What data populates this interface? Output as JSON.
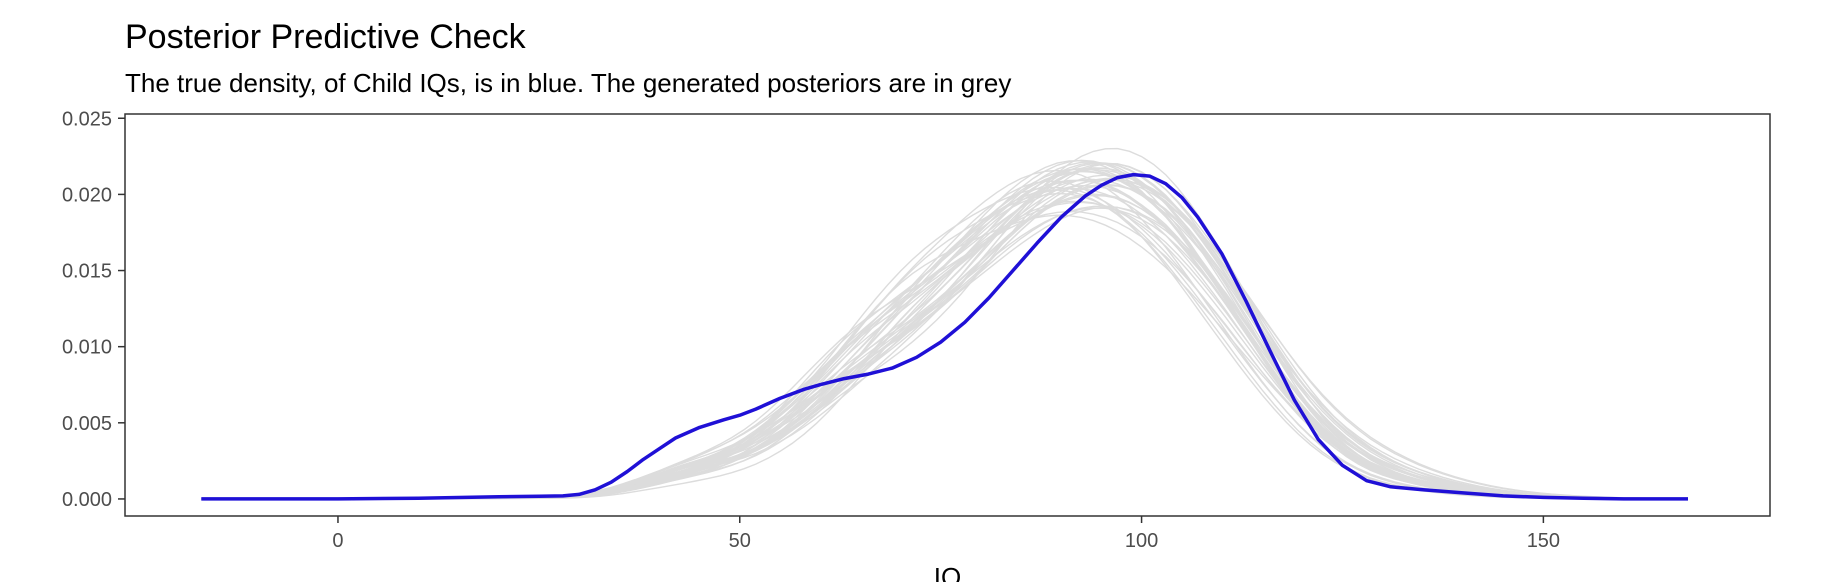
{
  "chart_data": {
    "type": "line",
    "title": "Posterior Predictive Check",
    "subtitle": "The true density, of Child IQs, is in blue. The generated posteriors are in grey",
    "xlabel": "IQ",
    "ylabel": "",
    "xlim": [
      -26.5,
      178.2
    ],
    "ylim": [
      -0.00112,
      0.02528
    ],
    "x_ticks": [
      0,
      50,
      100,
      150
    ],
    "x_tick_labels": [
      "0",
      "50",
      "100",
      "150"
    ],
    "y_ticks": [
      0.0,
      0.005,
      0.01,
      0.015,
      0.02,
      0.025
    ],
    "y_tick_labels": [
      "0.000",
      "0.005",
      "0.010",
      "0.015",
      "0.020",
      "0.025"
    ],
    "grid": false,
    "legend": "none",
    "colors": {
      "observed": "#1f10d6",
      "posterior": "#dcdcdc",
      "axis": "#333333"
    },
    "observed": {
      "x": [
        -17,
        -10,
        0,
        10,
        20,
        25,
        28,
        30,
        32,
        34,
        36,
        38,
        40,
        42,
        45,
        48,
        50,
        52,
        55,
        58,
        60,
        63,
        66,
        69,
        72,
        75,
        78,
        81,
        84,
        87,
        90,
        93,
        95,
        97,
        99,
        101,
        103,
        105,
        107,
        110,
        113,
        116,
        119,
        122,
        125,
        128,
        131,
        135,
        140,
        145,
        150,
        155,
        160,
        168
      ],
      "y": [
        0.0,
        0.0,
        0.0,
        5e-05,
        0.00015,
        0.00018,
        0.0002,
        0.0003,
        0.0006,
        0.0011,
        0.0018,
        0.0026,
        0.0033,
        0.004,
        0.0047,
        0.0052,
        0.0055,
        0.0059,
        0.0066,
        0.0072,
        0.0075,
        0.0079,
        0.0082,
        0.0086,
        0.0093,
        0.0103,
        0.0116,
        0.0132,
        0.015,
        0.0168,
        0.0185,
        0.0199,
        0.0206,
        0.0211,
        0.0213,
        0.0212,
        0.0207,
        0.0198,
        0.0185,
        0.0161,
        0.013,
        0.0097,
        0.0065,
        0.0039,
        0.0022,
        0.0012,
        0.0008,
        0.0006,
        0.0004,
        0.0002,
        0.0001,
        5e-05,
        0.0,
        0.0
      ]
    },
    "posterior_draws": {
      "count": 40,
      "x_min": -17,
      "x_max": 168,
      "approx_peak_x_range": [
        88,
        98
      ],
      "approx_peak_y_range": [
        0.0182,
        0.024
      ]
    }
  }
}
